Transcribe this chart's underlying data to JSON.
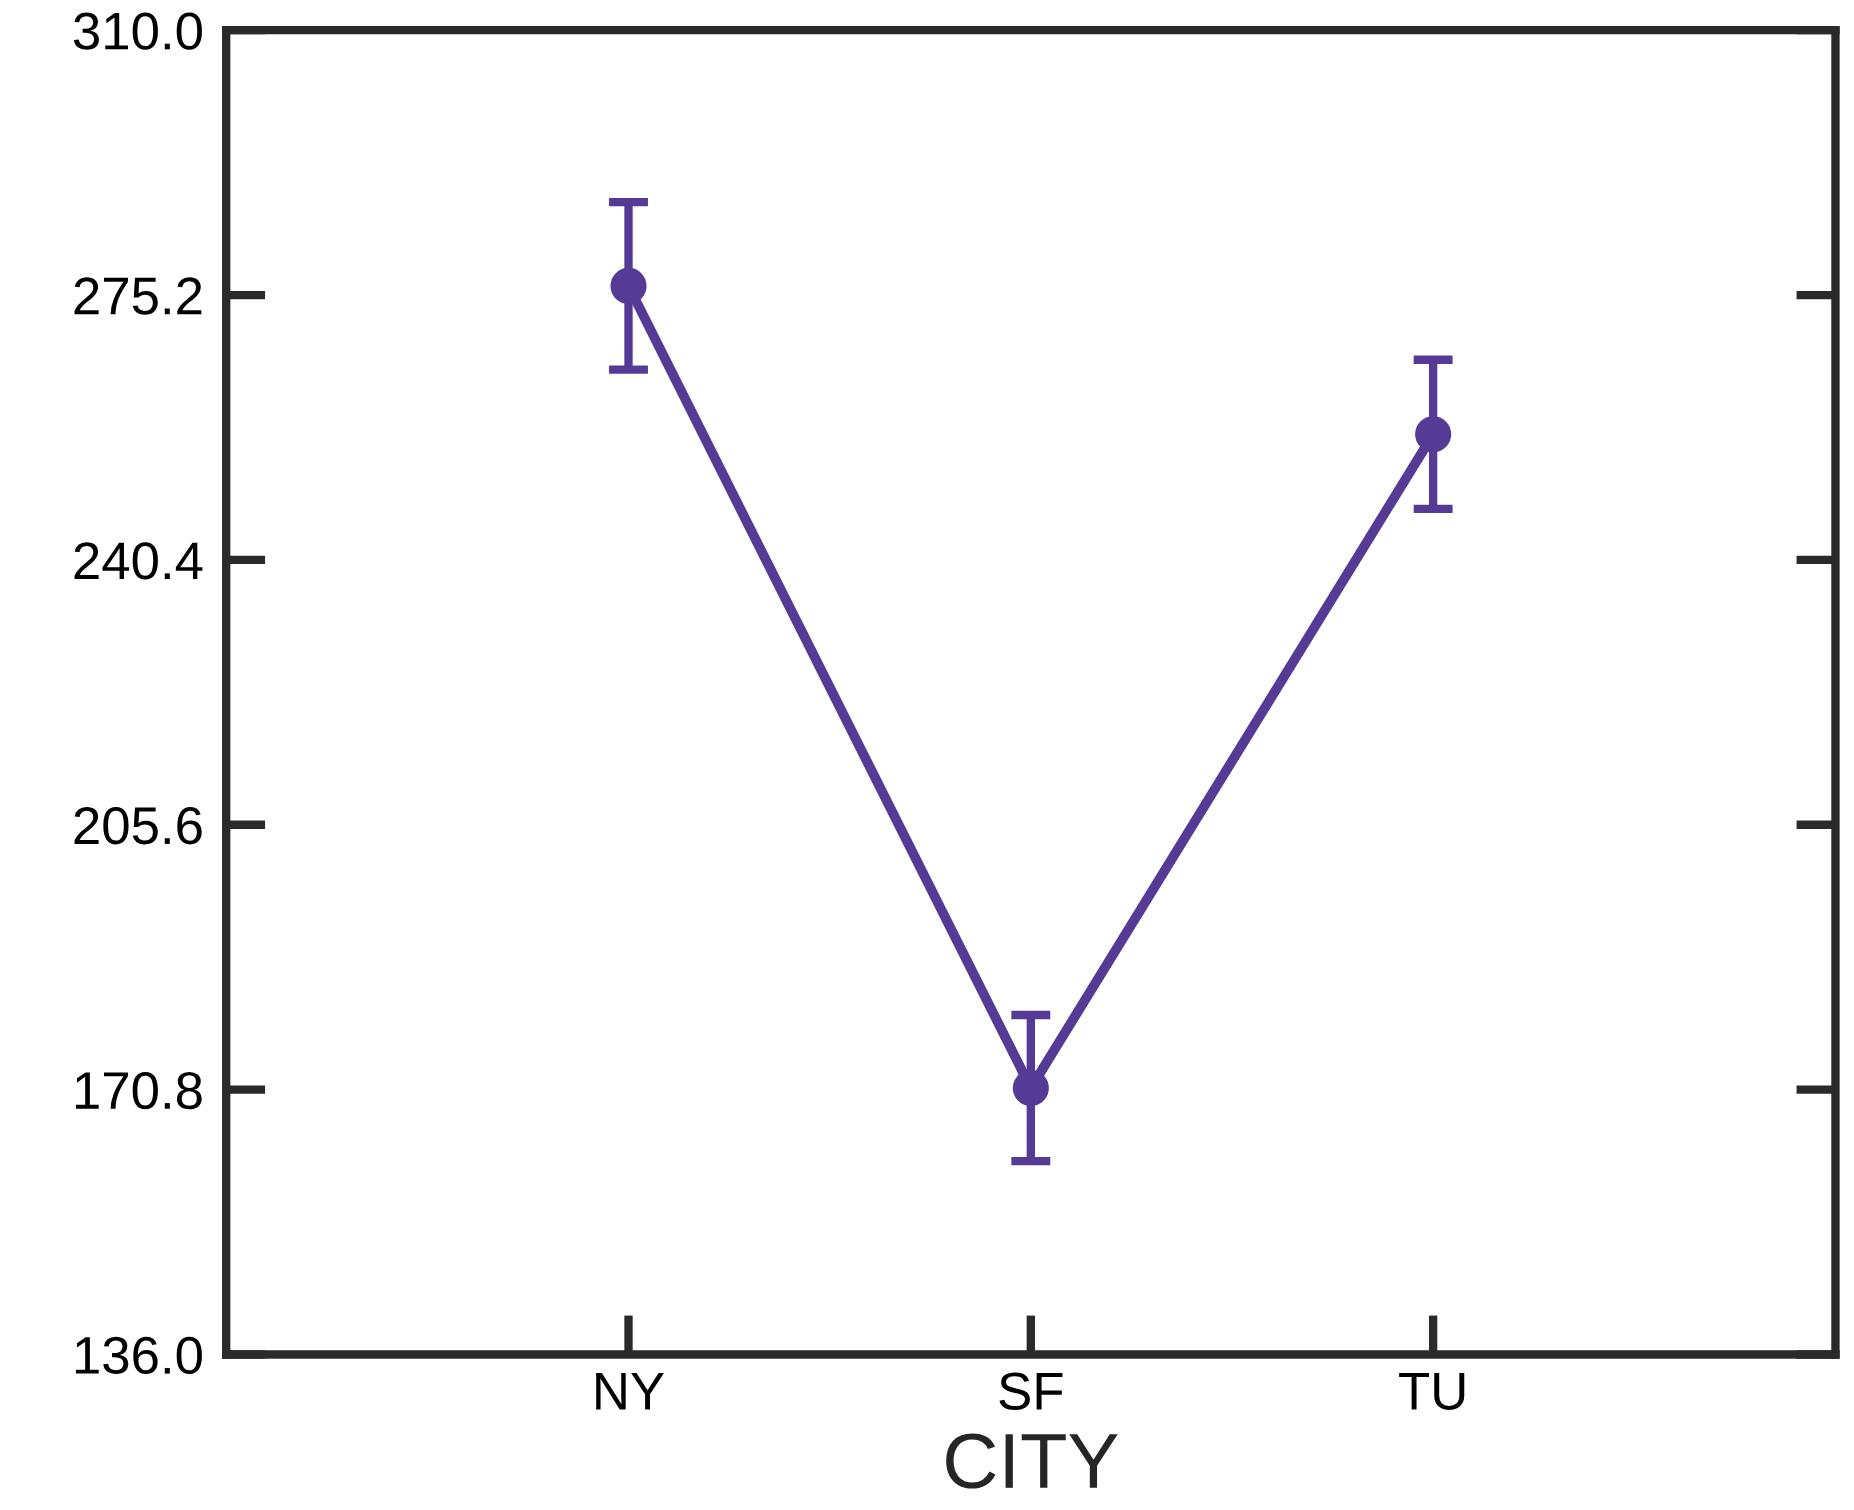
{
  "chart_data": {
    "type": "line",
    "xlabel": "CITY",
    "categories": [
      "NY",
      "SF",
      "TU"
    ],
    "series": [
      {
        "color": "#553a96",
        "values": [
          276.4,
          171.0,
          256.9
        ],
        "errors": [
          11.0,
          9.6,
          9.8
        ]
      }
    ],
    "ylim": [
      136.0,
      310.0
    ],
    "yticks": [
      {
        "value": 136.0,
        "label": "136.0"
      },
      {
        "value": 170.8,
        "label": "170.8"
      },
      {
        "value": 205.6,
        "label": "205.6"
      },
      {
        "value": 240.4,
        "label": "240.4"
      },
      {
        "value": 275.2,
        "label": "275.2"
      },
      {
        "value": 310.0,
        "label": "310.0"
      }
    ],
    "marker": "circle",
    "line_style": "solid",
    "grid": false,
    "legend": false
  }
}
